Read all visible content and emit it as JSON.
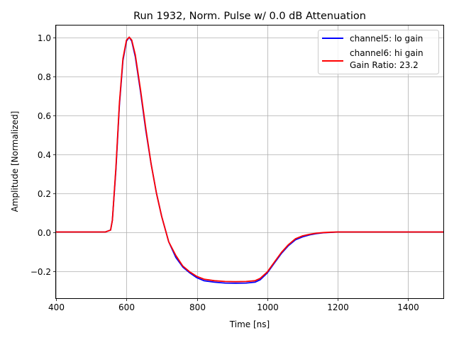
{
  "chart_data": {
    "type": "line",
    "title": "Run 1932, Norm. Pulse w/ 0.0 dB Attenuation",
    "xlabel": "Time [ns]",
    "ylabel": "Amplitude [Normalized]",
    "xlim": [
      400,
      1500
    ],
    "ylim": [
      -0.34,
      1.06
    ],
    "x_ticks": [
      400,
      600,
      800,
      1000,
      1200,
      1400
    ],
    "y_ticks": [
      -0.2,
      0.0,
      0.2,
      0.4,
      0.6,
      0.8,
      1.0
    ],
    "x_tick_labels": [
      "400",
      "600",
      "800",
      "1000",
      "1200",
      "1400"
    ],
    "y_tick_labels": [
      "−0.2",
      "0.0",
      "0.2",
      "0.4",
      "0.6",
      "0.8",
      "1.0"
    ],
    "grid": true,
    "legend_position": "top-right",
    "legend_note": "Gain Ratio: 23.2",
    "series": [
      {
        "name": "channel5: lo gain",
        "color": "#0000ff",
        "x": [
          400,
          450,
          500,
          540,
          555,
          560,
          570,
          580,
          590,
          600,
          608,
          615,
          625,
          640,
          655,
          670,
          685,
          700,
          720,
          740,
          760,
          780,
          800,
          820,
          850,
          880,
          910,
          940,
          965,
          980,
          1000,
          1020,
          1040,
          1060,
          1080,
          1100,
          1120,
          1140,
          1160,
          1180,
          1200,
          1250,
          1300,
          1350,
          1400,
          1450,
          1500
        ],
        "y": [
          0.0,
          0.0,
          0.0,
          0.0,
          0.01,
          0.06,
          0.32,
          0.65,
          0.88,
          0.98,
          1.0,
          0.98,
          0.9,
          0.72,
          0.52,
          0.35,
          0.2,
          0.08,
          -0.05,
          -0.13,
          -0.18,
          -0.21,
          -0.235,
          -0.25,
          -0.258,
          -0.262,
          -0.263,
          -0.262,
          -0.258,
          -0.245,
          -0.21,
          -0.16,
          -0.11,
          -0.07,
          -0.04,
          -0.025,
          -0.015,
          -0.008,
          -0.004,
          -0.002,
          0.0,
          0.0,
          0.0,
          0.0,
          0.0,
          0.0,
          0.0
        ]
      },
      {
        "name": "channel6: hi gain",
        "color": "#ff0000",
        "x": [
          400,
          450,
          500,
          540,
          555,
          560,
          570,
          580,
          590,
          600,
          608,
          615,
          625,
          640,
          655,
          670,
          685,
          700,
          720,
          740,
          760,
          780,
          800,
          820,
          850,
          880,
          910,
          940,
          965,
          980,
          1000,
          1020,
          1040,
          1060,
          1080,
          1100,
          1120,
          1140,
          1160,
          1180,
          1200,
          1250,
          1300,
          1350,
          1400,
          1450,
          1500
        ],
        "y": [
          0.0,
          0.0,
          0.0,
          0.0,
          0.01,
          0.06,
          0.33,
          0.66,
          0.89,
          0.985,
          1.0,
          0.985,
          0.91,
          0.73,
          0.53,
          0.35,
          0.2,
          0.08,
          -0.05,
          -0.12,
          -0.175,
          -0.205,
          -0.228,
          -0.242,
          -0.25,
          -0.254,
          -0.255,
          -0.254,
          -0.25,
          -0.238,
          -0.205,
          -0.155,
          -0.105,
          -0.065,
          -0.035,
          -0.02,
          -0.012,
          -0.006,
          -0.003,
          -0.001,
          0.0,
          0.0,
          0.0,
          0.0,
          0.0,
          0.0,
          0.0
        ]
      }
    ]
  }
}
